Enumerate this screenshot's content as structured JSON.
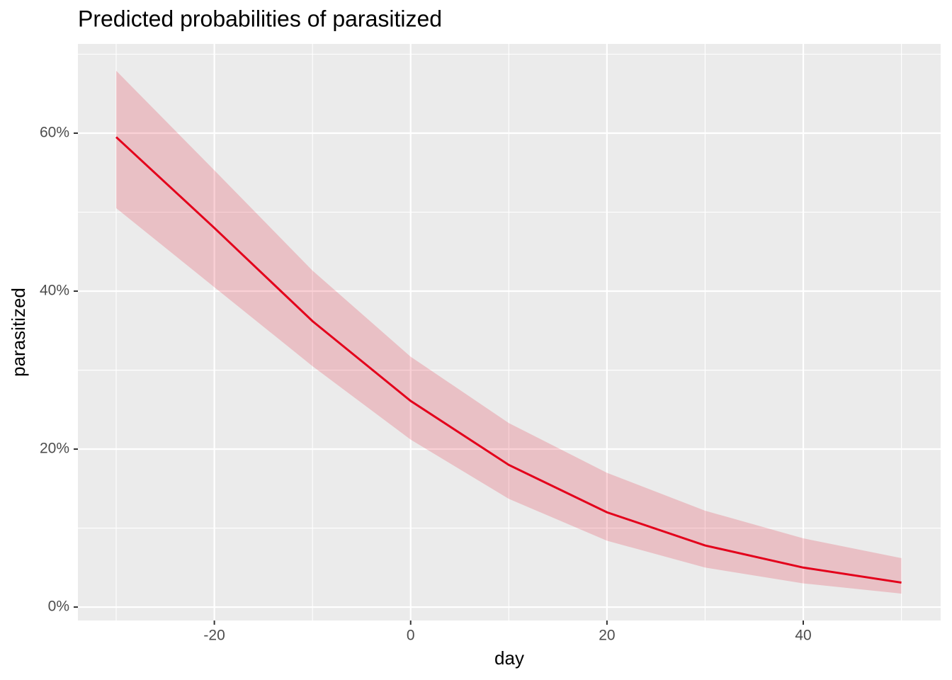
{
  "chart_data": {
    "type": "line",
    "title": "Predicted probabilities of parasitized",
    "xlabel": "day",
    "ylabel": "parasitized",
    "x": [
      -30,
      -20,
      -10,
      0,
      10,
      20,
      30,
      40,
      50
    ],
    "series": [
      {
        "color": "#e3001b",
        "values": [
          59.5,
          48.0,
          36.2,
          26.1,
          18.0,
          12.0,
          7.8,
          5.0,
          3.1
        ],
        "upper": [
          67.9,
          55.3,
          42.6,
          31.7,
          23.3,
          17.0,
          12.2,
          8.7,
          6.2
        ],
        "lower": [
          50.5,
          40.5,
          30.5,
          21.2,
          13.7,
          8.4,
          5.0,
          3.0,
          1.7
        ]
      }
    ],
    "xlim": [
      -33.9,
      54.0
    ],
    "xticks": [
      -20,
      0,
      20,
      40
    ],
    "ylim": [
      -1.7,
      71.3
    ],
    "yticks": [
      {
        "value": 0,
        "label": "0%"
      },
      {
        "value": 20,
        "label": "20%"
      },
      {
        "value": 40,
        "label": "40%"
      },
      {
        "value": 60,
        "label": "60%"
      }
    ],
    "grid": true,
    "minor_grid": true
  }
}
